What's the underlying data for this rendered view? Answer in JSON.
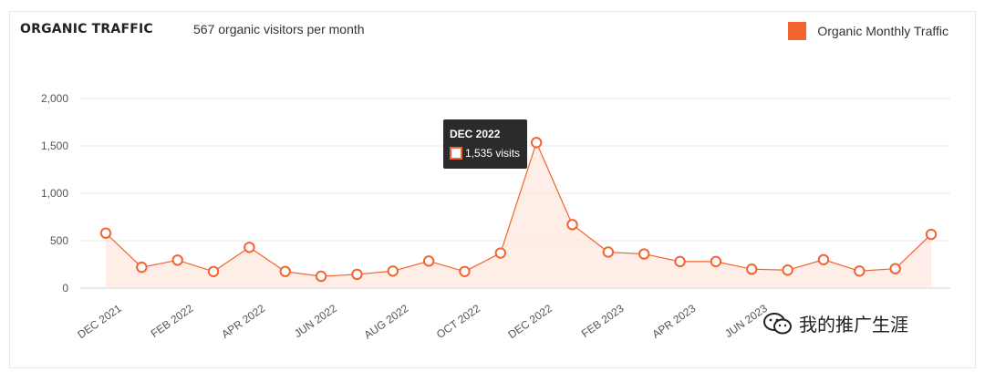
{
  "header": {
    "title": "ORGANIC TRAFFIC",
    "subtitle": "567 organic visitors per month",
    "legend_label": "Organic Monthly Traffic"
  },
  "colors": {
    "series": "#f26430",
    "fill": "#fde8df",
    "grid": "#e8e8e8",
    "tooltip_bg": "#2b2b2b"
  },
  "tooltip": {
    "month": "DEC 2022",
    "value_text": "1,535 visits"
  },
  "watermark": {
    "icon": "wechat-icon",
    "text": "我的推广生涯"
  },
  "chart_data": {
    "type": "area",
    "title": "ORGANIC TRAFFIC",
    "xlabel": "",
    "ylabel": "",
    "ylim": [
      0,
      2000
    ],
    "yticks": [
      0,
      500,
      1000,
      1500,
      2000
    ],
    "ytick_labels": [
      "0",
      "500",
      "1,000",
      "1,500",
      "2,000"
    ],
    "grid": true,
    "legend": "top-right",
    "x": [
      "DEC 2021",
      "JAN 2022",
      "FEB 2022",
      "MAR 2022",
      "APR 2022",
      "MAY 2022",
      "JUN 2022",
      "JUL 2022",
      "AUG 2022",
      "SEP 2022",
      "OCT 2022",
      "NOV 2022",
      "DEC 2022",
      "JAN 2023",
      "FEB 2023",
      "MAR 2023",
      "APR 2023",
      "MAY 2023",
      "JUN 2023",
      "JUL 2023",
      "AUG 2023",
      "SEP 2023",
      "OCT 2023",
      "NOV 2023"
    ],
    "xtick_labels": [
      "DEC 2021",
      "FEB 2022",
      "APR 2022",
      "JUN 2022",
      "AUG 2022",
      "OCT 2022",
      "DEC 2022",
      "FEB 2023",
      "APR 2023",
      "JUN 2023"
    ],
    "series": [
      {
        "name": "Organic Monthly Traffic",
        "values": [
          580,
          220,
          295,
          175,
          430,
          175,
          125,
          145,
          180,
          285,
          175,
          370,
          1535,
          670,
          380,
          360,
          280,
          280,
          200,
          190,
          300,
          180,
          205,
          567
        ]
      }
    ]
  }
}
